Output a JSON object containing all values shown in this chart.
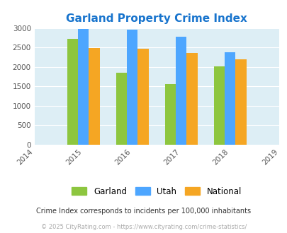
{
  "title": "Garland Property Crime Index",
  "title_color": "#1874cd",
  "years": [
    2015,
    2016,
    2017,
    2018
  ],
  "x_tick_labels": [
    "2014",
    "2015",
    "2016",
    "2017",
    "2018",
    "2019"
  ],
  "garland": [
    2720,
    1840,
    1560,
    2020
  ],
  "utah": [
    2980,
    2950,
    2770,
    2370
  ],
  "national": [
    2490,
    2460,
    2360,
    2190
  ],
  "garland_color": "#8dc63f",
  "utah_color": "#4da6ff",
  "national_color": "#f5a623",
  "ylim": [
    0,
    3000
  ],
  "yticks": [
    0,
    500,
    1000,
    1500,
    2000,
    2500,
    3000
  ],
  "bg_color": "#ddeef5",
  "fig_bg": "#ffffff",
  "legend_labels": [
    "Garland",
    "Utah",
    "National"
  ],
  "note_text": "Crime Index corresponds to incidents per 100,000 inhabitants",
  "footer_text": "© 2025 CityRating.com - https://www.cityrating.com/crime-statistics/",
  "note_color": "#333333",
  "footer_color": "#aaaaaa",
  "bar_width": 0.22
}
